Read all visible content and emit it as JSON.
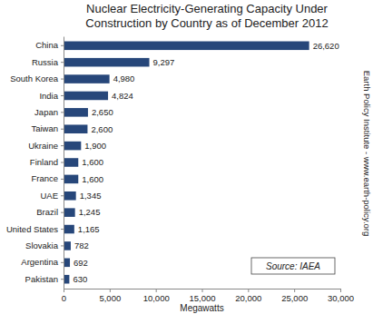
{
  "chart_data": {
    "type": "bar",
    "orientation": "horizontal",
    "title": "Nuclear Electricity-Generating Capacity Under Construction by Country as of December 2012",
    "x_label": "Megawatts",
    "categories": [
      "China",
      "Russia",
      "South Korea",
      "India",
      "Japan",
      "Taiwan",
      "Ukraine",
      "Finland",
      "France",
      "UAE",
      "Brazil",
      "United States",
      "Slovakia",
      "Argentina",
      "Pakistan"
    ],
    "values": [
      26620,
      9297,
      4980,
      4824,
      2650,
      2600,
      1900,
      1600,
      1600,
      1345,
      1245,
      1165,
      782,
      692,
      630
    ],
    "value_labels": [
      "26,620",
      "9,297",
      "4,980",
      "4,824",
      "2,650",
      "2,600",
      "1,900",
      "1,600",
      "1,600",
      "1,345",
      "1,245",
      "1,165",
      "782",
      "692",
      "630"
    ],
    "data_labels": true,
    "color": "#27477a",
    "xlim": [
      0,
      30000
    ],
    "xticks": [
      0,
      {
        "value": 5000,
        "label": "5,000"
      },
      {
        "value": 10000,
        "label": "10,000"
      },
      {
        "value": 15000,
        "label": "15,000"
      },
      {
        "value": 20000,
        "label": "20,000"
      },
      {
        "value": 25000,
        "label": "25,000"
      },
      {
        "value": 30000,
        "label": "30,000"
      }
    ],
    "grid": false,
    "annotations": [
      "Earth Policy Institute - www.earth-policy.org",
      "Source: IAEA"
    ]
  }
}
